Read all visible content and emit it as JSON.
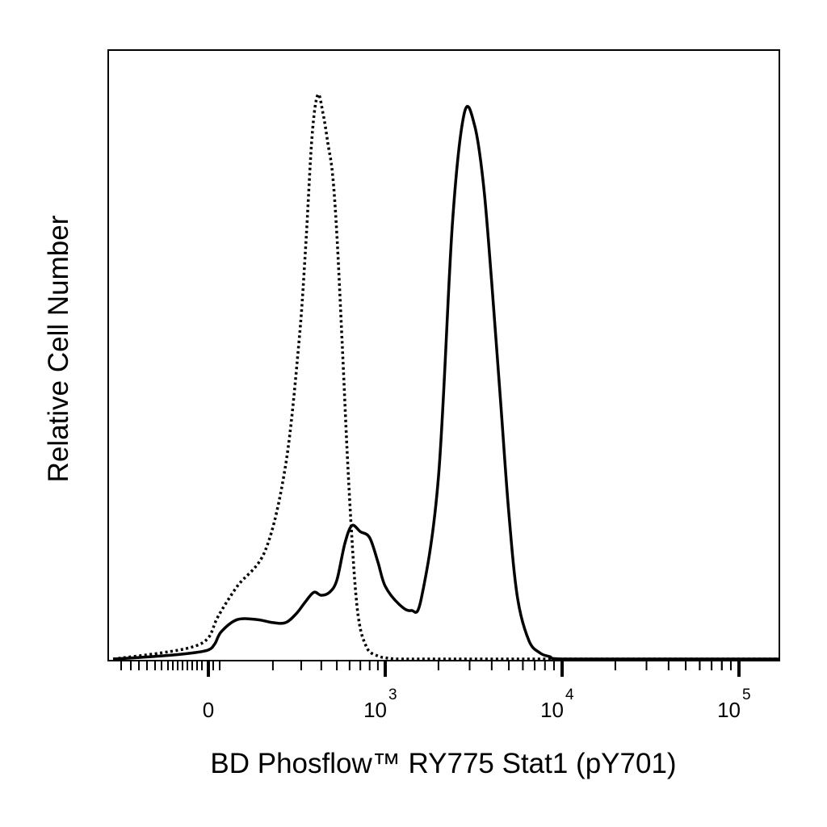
{
  "chart_data": {
    "type": "line",
    "title": "",
    "xlabel": "BD Phosflow™ RY775 Stat1 (pY701)",
    "ylabel": "Relative Cell Number",
    "x_scale": "biexponential",
    "xlim": [
      -300,
      250000
    ],
    "ylim": [
      0,
      1
    ],
    "grid": false,
    "legend": "none",
    "x_ticks": [
      {
        "value": 0,
        "base": "0",
        "exp": ""
      },
      {
        "value": 1000,
        "base": "10",
        "exp": "3"
      },
      {
        "value": 10000,
        "base": "10",
        "exp": "4"
      },
      {
        "value": 100000,
        "base": "10",
        "exp": "5"
      }
    ],
    "series": [
      {
        "style": "dotted",
        "color": "#000000",
        "x": [
          -300,
          -150,
          -50,
          0,
          60,
          120,
          180,
          240,
          290,
          320,
          350,
          380,
          410,
          440,
          470,
          500,
          540,
          580,
          620,
          660,
          700,
          750,
          800,
          900,
          1000,
          1200,
          2000,
          10000,
          250000
        ],
        "y": [
          0,
          0.01,
          0.02,
          0.035,
          0.07,
          0.12,
          0.18,
          0.32,
          0.52,
          0.68,
          0.86,
          0.93,
          0.9,
          0.85,
          0.8,
          0.7,
          0.52,
          0.34,
          0.2,
          0.1,
          0.05,
          0.025,
          0.012,
          0.005,
          0.002,
          0,
          0,
          0,
          0
        ]
      },
      {
        "style": "solid",
        "color": "#000000",
        "x": [
          -300,
          -150,
          -50,
          0,
          40,
          80,
          120,
          160,
          200,
          240,
          280,
          320,
          360,
          400,
          450,
          500,
          560,
          620,
          700,
          800,
          900,
          1000,
          1200,
          1400,
          1600,
          2000,
          2400,
          2800,
          3200,
          3600,
          4000,
          4500,
          5000,
          5600,
          6500,
          7500,
          8500,
          10000,
          30000,
          250000
        ],
        "y": [
          0,
          0.005,
          0.01,
          0.015,
          0.025,
          0.045,
          0.065,
          0.065,
          0.06,
          0.06,
          0.075,
          0.095,
          0.11,
          0.105,
          0.11,
          0.13,
          0.19,
          0.22,
          0.21,
          0.2,
          0.16,
          0.12,
          0.09,
          0.08,
          0.1,
          0.3,
          0.72,
          0.9,
          0.88,
          0.78,
          0.62,
          0.42,
          0.24,
          0.1,
          0.03,
          0.01,
          0.004,
          0,
          0,
          0
        ]
      }
    ]
  }
}
